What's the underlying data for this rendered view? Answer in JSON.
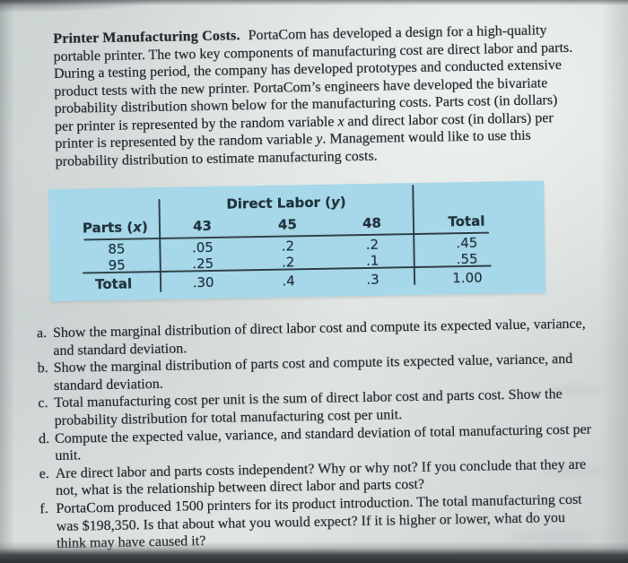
{
  "problem": {
    "title": "Printer Manufacturing Costs.",
    "intro": {
      "s1": "PortaCom has developed a design for a high-qual­ity portable printer. The two key components of manufacturing cost are direct labor and parts. During a testing period, the company has developed prototypes and conducted extensive product tests with the new printer. PortaCom’s engineers have developed the bivariate probability distribution shown below for the man­ufacturing costs. Parts cost (in dollars) per printer is represented by the random variable ",
      "var_x": "x",
      "s2": " and direct labor cost (in dollars) per printer is represented by the random variable ",
      "var_y": "y",
      "s3": ". Management would like to use this probability distribution to estimate manufacturing costs."
    }
  },
  "table": {
    "group_header": {
      "pre": "Direct Labor (",
      "var": "y",
      "post": ")"
    },
    "corner_header": {
      "pre": "Parts (",
      "var": "x",
      "post": ")"
    },
    "col_labels": [
      "43",
      "45",
      "48"
    ],
    "total_col_label": "Total",
    "rows": [
      {
        "label": "85",
        "cells": [
          ".05",
          ".2",
          ".2"
        ],
        "total": ".45"
      },
      {
        "label": "95",
        "cells": [
          ".25",
          ".2",
          ".1"
        ],
        "total": ".55"
      }
    ],
    "footer": {
      "label": "Total",
      "cells": [
        ".30",
        ".4",
        ".3"
      ],
      "total": "1.00"
    }
  },
  "questions": [
    {
      "label": "a.",
      "text": "Show the marginal distribution of direct labor cost and compute its expected value, variance, and standard deviation."
    },
    {
      "label": "b.",
      "text": "Show the marginal distribution of parts cost and compute its expected value, variance, and standard deviation."
    },
    {
      "label": "c.",
      "text": "Total manufacturing cost per unit is the sum of direct labor cost and parts cost. Show the probability distribution for total manufacturing cost per unit."
    },
    {
      "label": "d.",
      "text": "Compute the expected value, variance, and standard deviation of total manufac­turing cost per unit."
    },
    {
      "label": "e.",
      "text": "Are direct labor and parts costs independent? Why or why not? If you conclude that they are not, what is the relationship between direct labor and parts cost?"
    },
    {
      "label": "f.",
      "text": "PortaCom produced 1500 printers for its product introduction. The total manu­facturing cost was $198,350. Is that about what you would expect? If it is higher or lower, what do you think may have caused it?"
    }
  ],
  "colors": {
    "table_background": "#a6d8e9",
    "paper": "#d8dddc",
    "ink": "#23272e",
    "table_rule": "#2a3a42"
  }
}
